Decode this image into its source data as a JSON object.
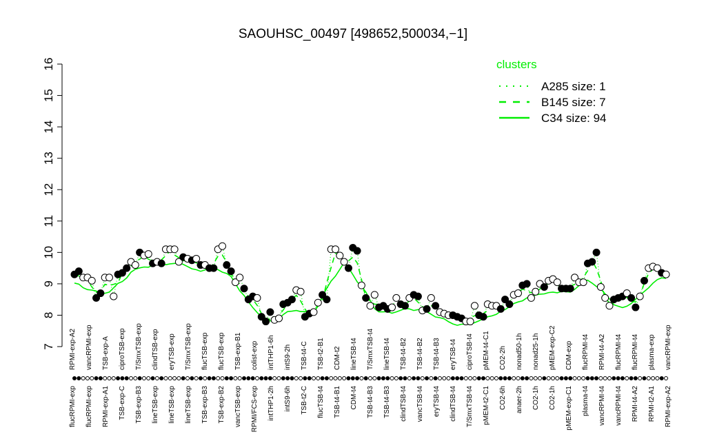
{
  "chart_data": {
    "type": "line",
    "title": "SAOUHSC_00497 [498652,500034,−1]",
    "xlabel": "",
    "ylabel": "",
    "ylim": [
      7,
      16
    ],
    "yticks": [
      7,
      8,
      9,
      10,
      11,
      12,
      13,
      14,
      15,
      16
    ],
    "grid": false,
    "legend": {
      "title": "clusters",
      "placement": "top-right",
      "entries": [
        {
          "name": "A285 size: 1",
          "style": "dotted"
        },
        {
          "name": "B145 size: 7",
          "style": "dashed"
        },
        {
          "name": "C34 size: 94",
          "style": "solid"
        }
      ]
    },
    "colors": {
      "cluster_lines": "#00ee00",
      "points": "#000000"
    },
    "top_labels": [
      "RPMI-exp-A2",
      "vancRPMI-exp",
      "TSB-exp-A",
      "ciproTSB-exp",
      "T/SmxTSB-exp",
      "clindTSB-exp",
      "eryTSB-exp",
      "T/SmxTSB-exp",
      "flucTSB-exp",
      "flucTSB-exp",
      "TSB-exp-B1",
      "colist-exp",
      "intTHP1-6h",
      "intS9-2h",
      "TSB-t4-C",
      "TSB-t2-B1",
      "CDM-t2",
      "lineTSB-t4",
      "T/SmxTSB-t4",
      "lineTSB-t4",
      "TSB-t4-B2",
      "TSB-t4-B2",
      "TSB-t4-B3",
      "eryTSB-t4",
      "ciproTSB-t4",
      "pMEM-t4-C1",
      "CO2-2h",
      "nonad50-1h",
      "nonad25-1h",
      "pMEM-exp-C2",
      "CDM-exp",
      "flucRPMI-t4",
      "RPMI-t4-A2",
      "flucRPMI-t4",
      "flucRPMI-t4",
      "plasma-exp",
      "vancRPMI-exp"
    ],
    "bottom_labels": [
      "flucRPMI-exp",
      "flucRPMI-exp",
      "RPMI-exp-A1",
      "TSB-exp-C",
      "TSB-exp-B3",
      "lineTSB-exp",
      "lineTSB-exp",
      "lineTSB-exp",
      "TSB-exp-B3",
      "TSB-exp-B2",
      "vancTSB-exp",
      "RPMI/FCS-exp",
      "intTHP1-2h",
      "intS9-6h",
      "TSB-t2-C",
      "flucTSB-t4",
      "TSB-t4-B1",
      "CDM-t4",
      "TSB-t4-B3",
      "TSB-t4-B3",
      "clindTSB-t4",
      "vancTSB-t4",
      "eryTSB-t4",
      "clindTSB-t4",
      "T/SmxTSB-t4",
      "pMEM-t2-C1",
      "CO2-6h",
      "anaer-2h",
      "CO2-1h",
      "CO2-1h",
      "pMEM-exp-C1",
      "plasma-t4",
      "vancRPMI-t4",
      "vancRPMI-t4",
      "RPMI-t4-A2",
      "RPMI-t2-A1",
      "RPMI-exp-A2"
    ],
    "values": [
      9.3,
      9.4,
      9.2,
      9.2,
      9.1,
      8.55,
      8.7,
      9.2,
      9.2,
      8.6,
      9.3,
      9.35,
      9.5,
      9.7,
      9.6,
      10.0,
      9.9,
      9.95,
      9.65,
      9.7,
      9.65,
      10.1,
      10.1,
      10.1,
      9.7,
      9.85,
      9.8,
      9.75,
      9.8,
      9.6,
      9.6,
      9.5,
      9.5,
      10.1,
      10.2,
      9.6,
      9.4,
      9.05,
      9.2,
      8.85,
      8.5,
      8.6,
      8.55,
      7.95,
      7.8,
      8.1,
      7.85,
      7.9,
      8.35,
      8.4,
      8.5,
      8.8,
      8.75,
      7.95,
      8.05,
      8.1,
      8.4,
      8.65,
      8.5,
      10.1,
      10.1,
      9.9,
      9.7,
      9.5,
      10.15,
      10.05,
      8.95,
      8.55,
      8.3,
      8.65,
      8.25,
      8.3,
      8.2,
      8.25,
      8.55,
      8.35,
      8.3,
      8.55,
      8.65,
      8.6,
      8.15,
      8.2,
      8.55,
      8.3,
      8.1,
      8.05,
      8.0,
      8.0,
      7.95,
      7.9,
      7.8,
      7.8,
      8.3,
      8.0,
      7.95,
      8.35,
      8.3,
      8.3,
      8.2,
      8.5,
      8.35,
      8.65,
      8.7,
      8.95,
      9.0,
      8.55,
      8.75,
      9.0,
      8.9,
      9.1,
      9.15,
      9.05,
      8.85,
      8.85,
      8.85,
      9.2,
      9.05,
      9.05,
      9.65,
      9.7,
      10.0,
      8.9,
      8.55,
      8.3,
      8.5,
      8.55,
      8.6,
      8.7,
      8.55,
      8.25,
      8.6,
      9.1,
      9.5,
      9.55,
      9.5,
      9.35,
      9.3
    ],
    "filled": [
      1,
      1,
      0,
      0,
      0,
      1,
      1,
      0,
      0,
      0,
      1,
      1,
      1,
      0,
      0,
      1,
      0,
      0,
      1,
      0,
      1,
      0,
      0,
      0,
      0,
      1,
      0,
      1,
      0,
      1,
      0,
      1,
      1,
      0,
      0,
      1,
      1,
      0,
      0,
      1,
      1,
      1,
      0,
      1,
      1,
      1,
      0,
      0,
      1,
      1,
      1,
      0,
      0,
      1,
      1,
      0,
      0,
      1,
      1,
      0,
      0,
      0,
      0,
      1,
      1,
      1,
      0,
      1,
      0,
      0,
      1,
      1,
      1,
      0,
      0,
      1,
      1,
      0,
      1,
      1,
      0,
      1,
      0,
      1,
      0,
      0,
      0,
      1,
      1,
      1,
      0,
      0,
      0,
      1,
      1,
      0,
      0,
      0,
      1,
      1,
      1,
      0,
      0,
      1,
      1,
      0,
      0,
      0,
      1,
      0,
      0,
      0,
      1,
      1,
      1,
      0,
      0,
      0,
      1,
      1,
      1,
      0,
      0,
      0,
      1,
      1,
      1,
      0,
      1,
      1,
      0,
      1,
      0,
      0,
      0,
      1,
      0
    ]
  }
}
